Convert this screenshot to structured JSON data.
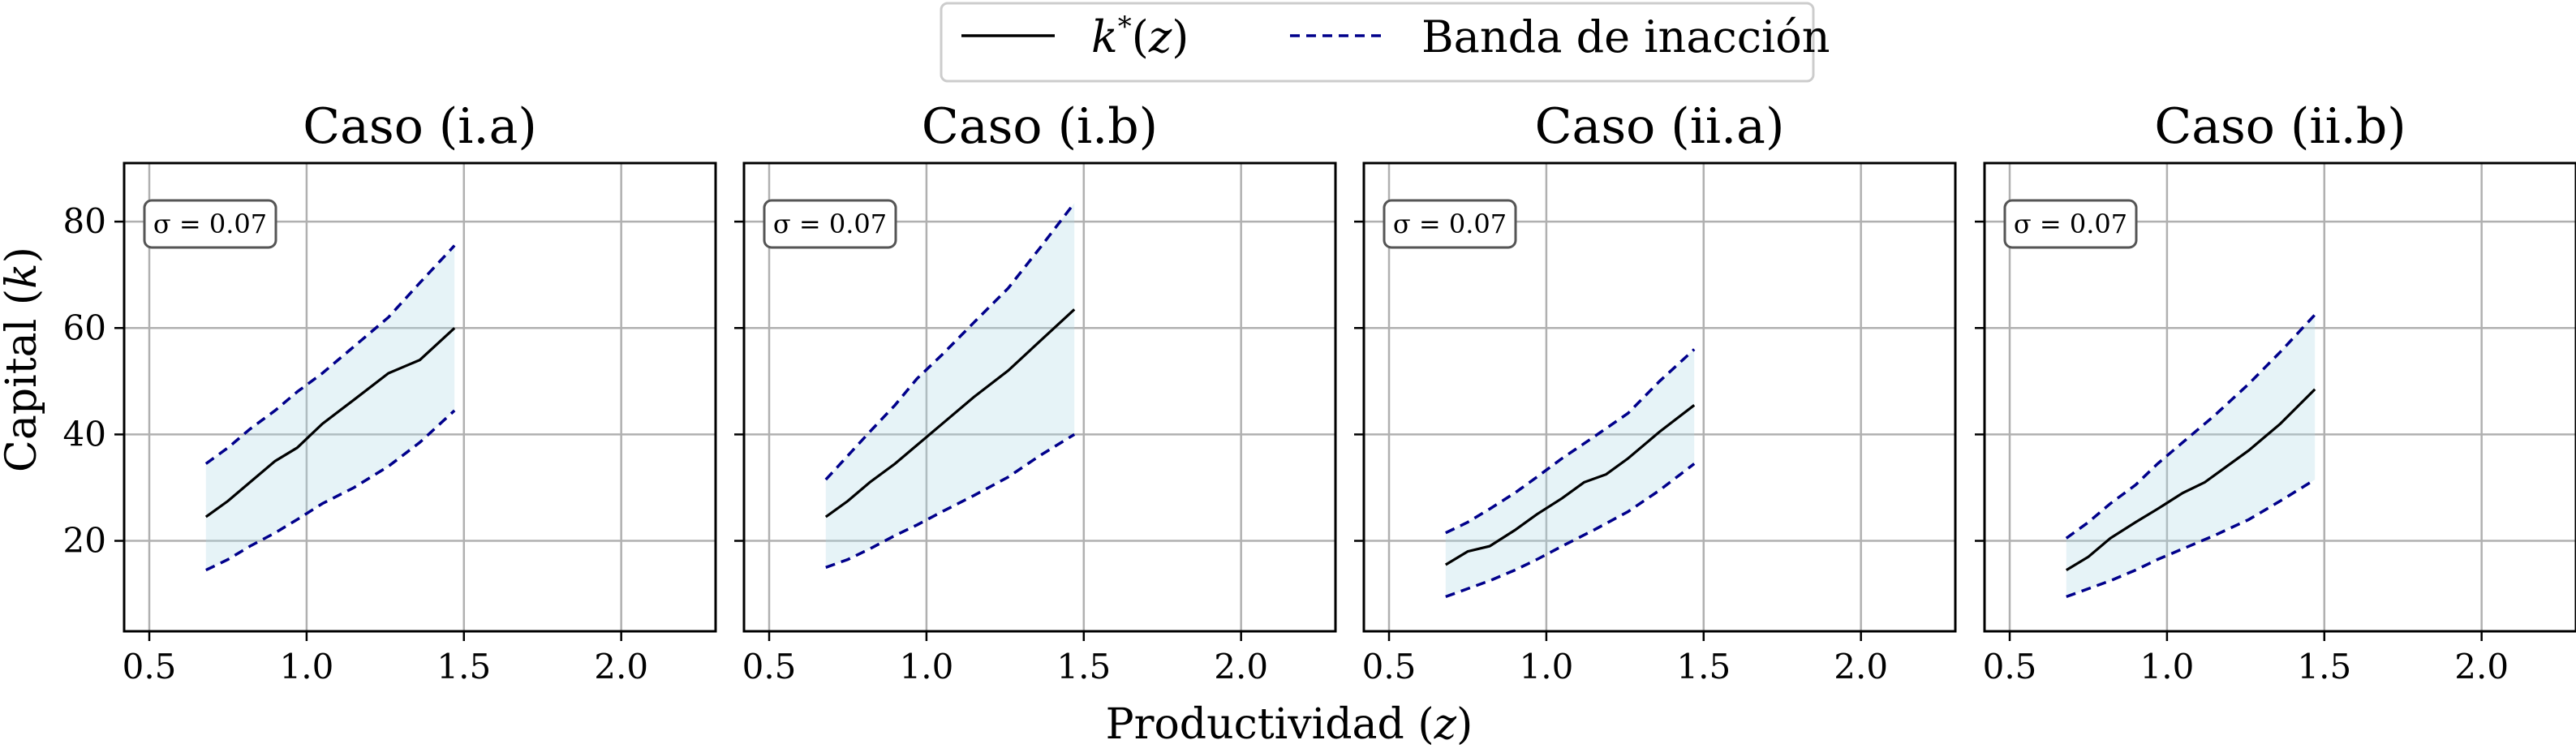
{
  "figure": {
    "xlabel": "Productividad (z)",
    "ylabel": "Capital (k)",
    "legend": {
      "placement": "top-center",
      "entries": [
        {
          "label": "k*(z)",
          "style": "solid",
          "color": "#000000"
        },
        {
          "label": "Banda de inacción",
          "style": "dashed",
          "color": "#00008b"
        }
      ]
    },
    "colors": {
      "line": "#000000",
      "band_edge": "#00008b",
      "band_fill": "#add8e6",
      "grid": "#b0b0b0"
    }
  },
  "chart_data": [
    {
      "type": "line",
      "title": "Caso (i.a)",
      "annotation": "σ = 0.07",
      "xlim": [
        0.42,
        2.3
      ],
      "ylim": [
        3,
        91
      ],
      "xticks": [
        "0.5",
        "1.0",
        "1.5",
        "2.0"
      ],
      "yticks": [
        "20",
        "40",
        "60",
        "80"
      ],
      "grid": true,
      "series": [
        {
          "name": "k*(z)",
          "x": [
            0.68,
            0.75,
            0.82,
            0.9,
            0.97,
            1.05,
            1.15,
            1.26,
            1.36,
            1.47
          ],
          "y": [
            24.5,
            27.5,
            31,
            35,
            37.5,
            42,
            46.5,
            51.5,
            54,
            60
          ]
        },
        {
          "name": "Banda de inacción",
          "role": "upper",
          "x": [
            0.68,
            0.75,
            0.82,
            0.9,
            0.97,
            1.05,
            1.15,
            1.26,
            1.36,
            1.47
          ],
          "y": [
            34.5,
            37.5,
            41,
            44.5,
            48,
            51.5,
            56.5,
            62,
            68.5,
            75.5
          ]
        },
        {
          "role": "lower",
          "x": [
            0.68,
            0.75,
            0.82,
            0.9,
            0.97,
            1.05,
            1.15,
            1.26,
            1.36,
            1.47
          ],
          "y": [
            14.5,
            16.5,
            19,
            21.5,
            24,
            27,
            30,
            34,
            38.5,
            44.5
          ]
        }
      ]
    },
    {
      "type": "line",
      "title": "Caso (i.b)",
      "annotation": "σ = 0.07",
      "xlim": [
        0.42,
        2.3
      ],
      "ylim": [
        3,
        91
      ],
      "xticks": [
        "0.5",
        "1.0",
        "1.5",
        "2.0"
      ],
      "yticks": [
        "20",
        "40",
        "60",
        "80"
      ],
      "grid": true,
      "series": [
        {
          "name": "k*(z)",
          "x": [
            0.68,
            0.75,
            0.82,
            0.9,
            0.97,
            1.05,
            1.15,
            1.26,
            1.36,
            1.47
          ],
          "y": [
            24.5,
            27.5,
            31,
            34.5,
            38,
            42,
            47,
            52,
            57.5,
            63.5
          ]
        },
        {
          "name": "Banda de inacción",
          "role": "upper",
          "x": [
            0.68,
            0.75,
            0.82,
            0.9,
            0.97,
            1.05,
            1.15,
            1.26,
            1.36,
            1.47
          ],
          "y": [
            31.5,
            36,
            40.5,
            45.5,
            50.5,
            55,
            61,
            67.5,
            75,
            83.5
          ]
        },
        {
          "role": "lower",
          "x": [
            0.68,
            0.75,
            0.82,
            0.9,
            0.97,
            1.05,
            1.15,
            1.26,
            1.36,
            1.47
          ],
          "y": [
            15,
            16.5,
            18.5,
            21,
            23,
            25.5,
            28.5,
            32,
            36,
            40
          ]
        }
      ]
    },
    {
      "type": "line",
      "title": "Caso (ii.a)",
      "annotation": "σ = 0.07",
      "xlim": [
        0.42,
        2.3
      ],
      "ylim": [
        3,
        91
      ],
      "xticks": [
        "0.5",
        "1.0",
        "1.5",
        "2.0"
      ],
      "yticks": [
        "20",
        "40",
        "60",
        "80"
      ],
      "grid": true,
      "series": [
        {
          "name": "k*(z)",
          "x": [
            0.68,
            0.75,
            0.82,
            0.9,
            0.97,
            1.05,
            1.12,
            1.19,
            1.26,
            1.36,
            1.47
          ],
          "y": [
            15.5,
            18,
            19,
            22,
            25,
            28,
            31,
            32.5,
            35.5,
            40.5,
            45.5
          ]
        },
        {
          "name": "Banda de inacción",
          "role": "upper",
          "x": [
            0.68,
            0.75,
            0.82,
            0.9,
            0.97,
            1.05,
            1.15,
            1.26,
            1.36,
            1.47
          ],
          "y": [
            21.5,
            23.5,
            26,
            29,
            32,
            35.5,
            39.5,
            44,
            50,
            56
          ]
        },
        {
          "role": "lower",
          "x": [
            0.68,
            0.75,
            0.82,
            0.9,
            0.97,
            1.05,
            1.15,
            1.26,
            1.36,
            1.47
          ],
          "y": [
            9.5,
            11,
            12.5,
            14.5,
            16.5,
            19,
            22,
            25.5,
            29.5,
            34.5
          ]
        }
      ]
    },
    {
      "type": "line",
      "title": "Caso (ii.b)",
      "annotation": "σ = 0.07",
      "xlim": [
        0.42,
        2.3
      ],
      "ylim": [
        3,
        91
      ],
      "xticks": [
        "0.5",
        "1.0",
        "1.5",
        "2.0"
      ],
      "yticks": [
        "20",
        "40",
        "60",
        "80"
      ],
      "grid": true,
      "series": [
        {
          "name": "k*(z)",
          "x": [
            0.68,
            0.75,
            0.82,
            0.9,
            0.97,
            1.05,
            1.12,
            1.19,
            1.26,
            1.36,
            1.47
          ],
          "y": [
            14.5,
            17,
            20.5,
            23.5,
            26,
            29,
            31,
            34,
            37,
            42,
            48.5
          ]
        },
        {
          "name": "Banda de inacción",
          "role": "upper",
          "x": [
            0.68,
            0.75,
            0.82,
            0.9,
            0.97,
            1.05,
            1.15,
            1.26,
            1.36,
            1.47
          ],
          "y": [
            20.5,
            23.5,
            27,
            30.5,
            34.5,
            38.5,
            43.5,
            49.5,
            55.5,
            62.5
          ]
        },
        {
          "role": "lower",
          "x": [
            0.68,
            0.75,
            0.82,
            0.9,
            0.97,
            1.05,
            1.15,
            1.26,
            1.36,
            1.47
          ],
          "y": [
            9.5,
            11,
            12.5,
            14.5,
            16.5,
            18.5,
            21,
            24,
            27.5,
            31.5
          ]
        }
      ]
    }
  ]
}
